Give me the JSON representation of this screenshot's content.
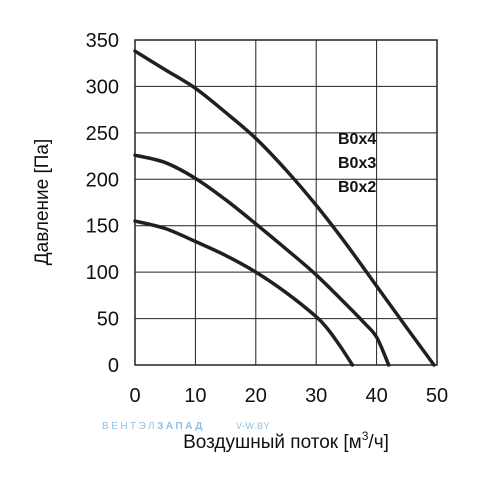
{
  "chart_data": {
    "type": "line",
    "xlabel_main": "Воздушный поток [м",
    "xlabel_sup": "3",
    "xlabel_end": "/ч]",
    "ylabel": "Давление [Па]",
    "xlim": [
      0,
      50
    ],
    "ylim": [
      0,
      350
    ],
    "x_ticks": [
      "0",
      "10",
      "20",
      "30",
      "40",
      "50"
    ],
    "y_ticks": [
      "0",
      "50",
      "100",
      "150",
      "200",
      "250",
      "300",
      "350"
    ],
    "grid": true,
    "legend_labels": [
      "B0x4",
      "B0x3",
      "B0x2"
    ],
    "series": [
      {
        "name": "B0x4",
        "x": [
          0,
          5,
          10,
          15,
          20,
          25,
          30,
          35,
          40,
          45,
          49.5
        ],
        "y": [
          338,
          318,
          298,
          272,
          244,
          210,
          172,
          130,
          85,
          40,
          0
        ]
      },
      {
        "name": "B0x3",
        "x": [
          0,
          5,
          10,
          15,
          20,
          25,
          30,
          35,
          38,
          40,
          42
        ],
        "y": [
          226,
          218,
          201,
          178,
          152,
          125,
          97,
          65,
          45,
          30,
          0
        ]
      },
      {
        "name": "B0x2",
        "x": [
          0,
          5,
          10,
          15,
          20,
          25,
          30,
          32,
          34,
          36
        ],
        "y": [
          155,
          147,
          133,
          118,
          100,
          78,
          52,
          38,
          20,
          0
        ]
      }
    ]
  },
  "watermark": {
    "brand_part1": "ВЕНТЭЛ",
    "brand_part2": "ЗАПАД",
    "site": "V-W.BY"
  },
  "colors": {
    "curve": "#231f20",
    "grid": "#222222",
    "watermark": "#8fc1e3"
  }
}
